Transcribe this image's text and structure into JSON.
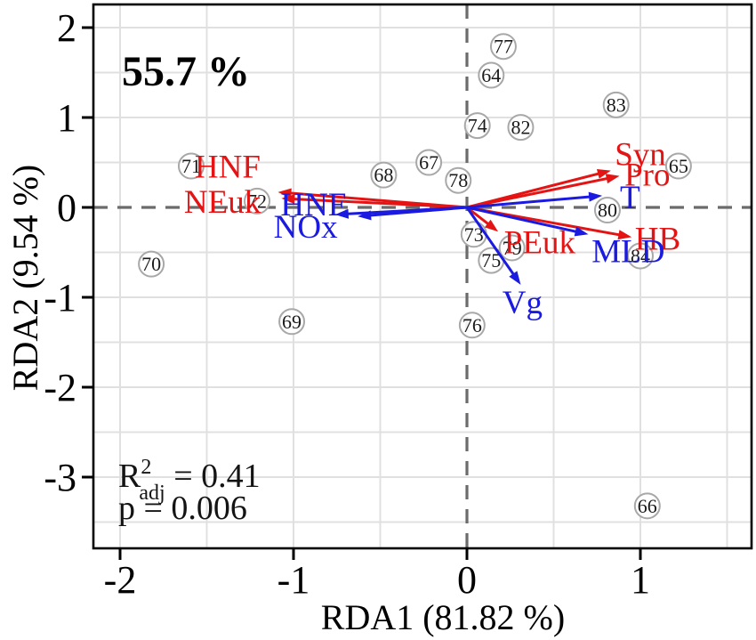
{
  "figure": {
    "annotation": "55.7 %",
    "stats": {
      "r2_base": "R",
      "r2_sup": "2",
      "r2_sub": "adj",
      "r2_eq": " = 0.41",
      "p_line": "p = 0.006"
    },
    "x_axis": {
      "label": "RDA1 (81.82 %)"
    },
    "y_axis": {
      "label": "RDA2 (9.54 %)"
    }
  },
  "colors": {
    "response_red": "#e51414",
    "explanatory_blue": "#1a1ae0",
    "site_stroke": "#a8a8a8",
    "site_fill": "#ffffff",
    "site_text": "#1a1a1a",
    "grid": "#e0e0e0",
    "zero_line": "#6b6b6b",
    "axis": "#000000"
  },
  "chart_data": {
    "type": "scatter",
    "subtype": "rda-triplot",
    "title": "",
    "xlabel": "RDA1 (81.82 %)",
    "ylabel": "RDA2 (9.54 %)",
    "xlim": [
      -2.15,
      1.64
    ],
    "ylim": [
      -3.79,
      2.26
    ],
    "grid_step": 0.5,
    "grid": true,
    "legend_position": "none",
    "variance_annotation": "55.7 %",
    "stats": {
      "r2_adj": 0.41,
      "p": 0.006
    },
    "x_ticks": [
      -2,
      -1,
      0,
      1
    ],
    "y_ticks": [
      2,
      1,
      0,
      -1,
      -2,
      -3
    ],
    "sites": [
      {
        "label": "64",
        "x": 0.14,
        "y": 1.47
      },
      {
        "label": "65",
        "x": 1.22,
        "y": 0.46
      },
      {
        "label": "66",
        "x": 1.04,
        "y": -3.32
      },
      {
        "label": "67",
        "x": -0.22,
        "y": 0.5
      },
      {
        "label": "68",
        "x": -0.48,
        "y": 0.36
      },
      {
        "label": "69",
        "x": -1.01,
        "y": -1.27
      },
      {
        "label": "70",
        "x": -1.82,
        "y": -0.63
      },
      {
        "label": "71",
        "x": -1.59,
        "y": 0.46
      },
      {
        "label": "72",
        "x": -1.21,
        "y": 0.07
      },
      {
        "label": "73",
        "x": 0.04,
        "y": -0.3
      },
      {
        "label": "74",
        "x": 0.06,
        "y": 0.91
      },
      {
        "label": "75",
        "x": 0.14,
        "y": -0.59
      },
      {
        "label": "76",
        "x": 0.03,
        "y": -1.31
      },
      {
        "label": "77",
        "x": 0.21,
        "y": 1.79
      },
      {
        "label": "78",
        "x": -0.05,
        "y": 0.3
      },
      {
        "label": "79",
        "x": 0.26,
        "y": -0.45
      },
      {
        "label": "80",
        "x": 0.81,
        "y": -0.03
      },
      {
        "label": "82",
        "x": 0.31,
        "y": 0.89
      },
      {
        "label": "83",
        "x": 0.86,
        "y": 1.14
      },
      {
        "label": "84",
        "x": 1.0,
        "y": -0.54
      }
    ],
    "arrows": [
      {
        "name": "HNF",
        "type": "response",
        "x": -1.09,
        "y": 0.17,
        "lx": -1.38,
        "ly": 0.46
      },
      {
        "name": "NEuk",
        "type": "response",
        "x": -1.07,
        "y": 0.1,
        "lx": -1.41,
        "ly": 0.07
      },
      {
        "name": "Syn",
        "type": "response",
        "x": 0.83,
        "y": 0.41,
        "lx": 1.0,
        "ly": 0.6
      },
      {
        "name": "Pro",
        "type": "response",
        "x": 0.88,
        "y": 0.35,
        "lx": 1.04,
        "ly": 0.37
      },
      {
        "name": "HB",
        "type": "response",
        "x": 0.95,
        "y": -0.33,
        "lx": 1.1,
        "ly": -0.34
      },
      {
        "name": "PEuk",
        "type": "response",
        "x": 0.18,
        "y": -0.27,
        "lx": 0.42,
        "ly": -0.38
      },
      {
        "name": "HNE",
        "type": "explanatory",
        "x": -0.76,
        "y": -0.08,
        "lx": -0.88,
        "ly": 0.04
      },
      {
        "name": "NOx",
        "type": "explanatory",
        "x": -0.63,
        "y": -0.1,
        "lx": -0.93,
        "ly": -0.21
      },
      {
        "name": "T",
        "type": "explanatory",
        "x": 0.78,
        "y": 0.13,
        "lx": 0.94,
        "ly": 0.12
      },
      {
        "name": "MLD",
        "type": "explanatory",
        "x": 0.7,
        "y": -0.3,
        "lx": 0.93,
        "ly": -0.48
      },
      {
        "name": "Vg",
        "type": "explanatory",
        "x": 0.31,
        "y": -0.86,
        "lx": 0.32,
        "ly": -1.05
      }
    ]
  }
}
